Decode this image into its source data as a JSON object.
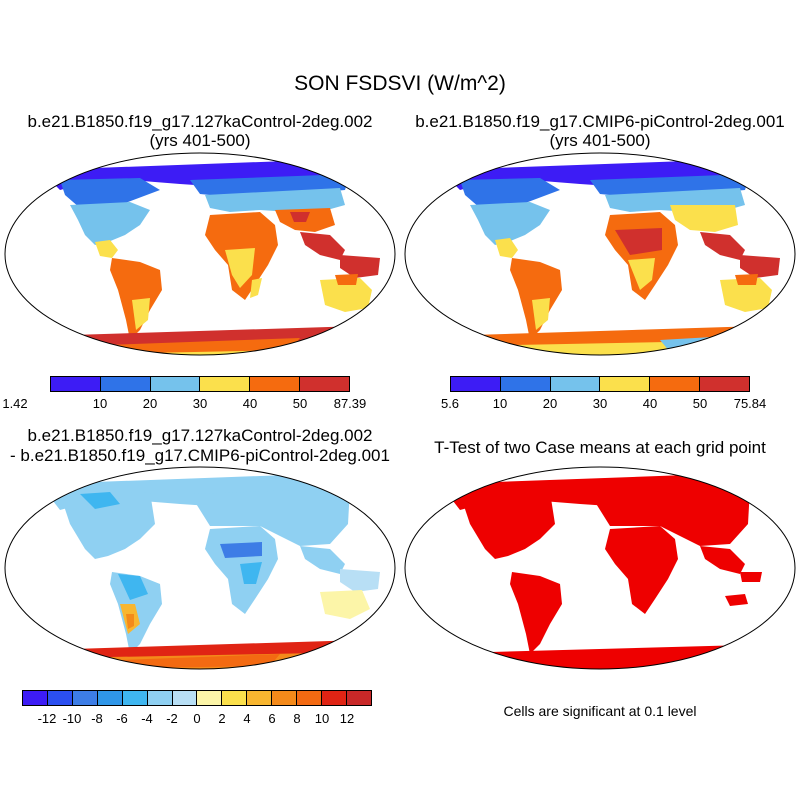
{
  "figure": {
    "title": "SON FSDSVI (W/m^2)"
  },
  "panels": [
    {
      "title_line1": "b.e21.B1850.f19_g17.127kaControl-2deg.002",
      "title_line2": "(yrs 401-500)",
      "colorbar": {
        "labels": [
          "1.42",
          "10",
          "20",
          "30",
          "40",
          "50",
          "87.39"
        ],
        "colors": [
          "#3d1cf5",
          "#2f73e8",
          "#75c2ec",
          "#fbe04c",
          "#f56b0f",
          "#d0302d"
        ]
      }
    },
    {
      "title_line1": "b.e21.B1850.f19_g17.CMIP6-piControl-2deg.001",
      "title_line2": "(yrs 401-500)",
      "colorbar": {
        "labels": [
          "5.6",
          "10",
          "20",
          "30",
          "40",
          "50",
          "75.84"
        ],
        "colors": [
          "#3d1cf5",
          "#2f73e8",
          "#75c2ec",
          "#fbe04c",
          "#f56b0f",
          "#d0302d"
        ]
      }
    },
    {
      "title_line1": "b.e21.B1850.f19_g17.127kaControl-2deg.002",
      "title_line2": "- b.e21.B1850.f19_g17.CMIP6-piControl-2deg.001",
      "colorbar": {
        "labels": [
          "-12",
          "-10",
          "-8",
          "-6",
          "-4",
          "-2",
          "0",
          "2",
          "4",
          "6",
          "8",
          "10",
          "12"
        ],
        "colors": [
          "#3d1cf5",
          "#2b4ff0",
          "#3d7de6",
          "#2f96e8",
          "#3fb6f0",
          "#8fd0f2",
          "#b8dff5",
          "#fcf5a8",
          "#fbe04c",
          "#f8b630",
          "#f48a1a",
          "#f36a12",
          "#e02414",
          "#c82828"
        ]
      }
    },
    {
      "title_line1": "T-Test of two Case means at each grid point",
      "note": "Cells are significant at 0.1 level",
      "fill_color": "#ee0000"
    }
  ]
}
